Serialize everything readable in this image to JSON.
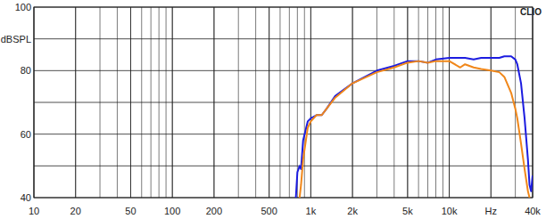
{
  "chart_data": {
    "type": "line",
    "log": "x",
    "grid": true,
    "annotation": "CLIO",
    "xlim": [
      10,
      40000
    ],
    "ylim": [
      40,
      100
    ],
    "xticks": [
      10,
      20,
      50,
      100,
      200,
      500,
      {
        "value": 1000,
        "label": "1k"
      },
      {
        "value": 2000,
        "label": "2k"
      },
      {
        "value": 5000,
        "label": "5k"
      },
      {
        "value": 10000,
        "label": "10k"
      },
      {
        "value": 20000,
        "label": "Hz"
      },
      {
        "value": 40000,
        "label": "40k"
      }
    ],
    "yticks": [
      40,
      {
        "value": 50,
        "label": null
      },
      60,
      {
        "value": 70,
        "label": null
      },
      80,
      {
        "value": 90,
        "label": "dBSPL"
      },
      100
    ],
    "x": [
      780,
      800,
      830,
      850,
      880,
      950,
      1000,
      1100,
      1200,
      1300,
      1500,
      2000,
      3000,
      4000,
      5000,
      6000,
      7000,
      8000,
      10000,
      12000,
      13000,
      15000,
      17000,
      20000,
      23000,
      25000,
      28000,
      30000,
      31000,
      33000,
      35000,
      37000,
      38000,
      39000,
      40000
    ],
    "series": [
      {
        "color": "#1c1ce0",
        "values": [
          40,
          48,
          50,
          49,
          58,
          64,
          65,
          66,
          66,
          68,
          72,
          76,
          80,
          81.5,
          83,
          83,
          82.5,
          83.5,
          84,
          84,
          84,
          83.5,
          84,
          84,
          84,
          84.5,
          84.5,
          83.5,
          82,
          76,
          65,
          52,
          44,
          42,
          47
        ]
      },
      {
        "color": "#f0871a",
        "values": [
          null,
          null,
          40,
          44,
          52,
          62,
          64,
          66,
          66,
          68,
          71.5,
          76,
          79.5,
          81,
          82.5,
          83,
          82.5,
          83,
          83,
          81,
          82,
          81,
          80.5,
          80,
          79.5,
          78,
          73,
          68,
          65,
          57,
          49,
          42,
          40,
          null,
          null
        ]
      }
    ]
  }
}
